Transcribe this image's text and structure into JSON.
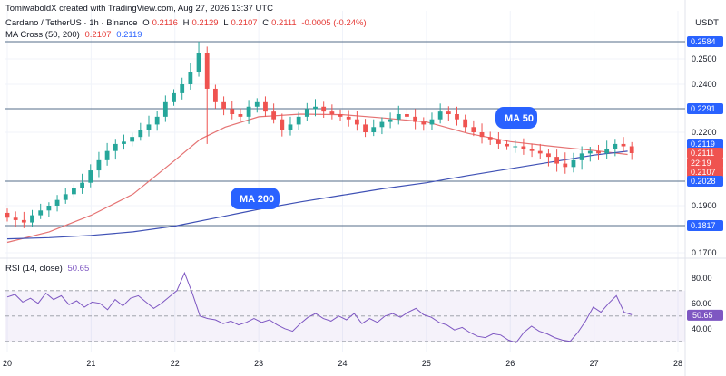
{
  "header": {
    "credit": "TomiwaboldX created with TradingView.com, Aug 27, 2026 13:37 UTC",
    "symbol": "Cardano / TetherUS · 1h · Binance",
    "ohlc": {
      "o_label": "O",
      "o": "0.2116",
      "h_label": "H",
      "h": "0.2129",
      "l_label": "L",
      "l": "0.2107",
      "c_label": "C",
      "c": "0.2111",
      "change": "-0.0005 (-0.24%)"
    },
    "ma_label": "MA Cross (50, 200)",
    "ma50_value": "0.2107",
    "ma200_value": "0.2119",
    "currency": "USDT"
  },
  "rsi_header": {
    "label": "RSI (14, close)",
    "value": "50.65"
  },
  "annotations": {
    "ma50": "MA 50",
    "ma200": "MA 200"
  },
  "colors": {
    "up": "#26a69a",
    "down": "#ef5350",
    "ma50": "#e57373",
    "ma200": "#3f51b5",
    "level": "#546e8a",
    "tag": "#2962ff",
    "rsi": "#7e57c2",
    "price_tag_red": "#ef5350"
  },
  "chart_data": [
    {
      "type": "candlestick",
      "title": "Cardano / TetherUS · 1h · Binance",
      "x_ticks": [
        "20",
        "21",
        "22",
        "23",
        "24",
        "25",
        "26",
        "27",
        "28"
      ],
      "y_ticks": [
        "0.2500",
        "0.2400",
        "0.2200",
        "0.1900",
        "0.1700"
      ],
      "ylim": [
        0.168,
        0.26
      ],
      "horizontal_levels": [
        "0.2584",
        "0.2291",
        "0.2028",
        "0.1817"
      ],
      "price_tags": [
        {
          "label": "0.2584",
          "kind": "level"
        },
        {
          "label": "0.2291",
          "kind": "level"
        },
        {
          "label": "0.2119",
          "kind": "ma"
        },
        {
          "label": "0.2111",
          "kind": "price"
        },
        {
          "label": "22:19",
          "kind": "countdown"
        },
        {
          "label": "0.2107",
          "kind": "ma50"
        },
        {
          "label": "0.2028",
          "kind": "level"
        },
        {
          "label": "0.1817",
          "kind": "level"
        }
      ],
      "series": [
        {
          "name": "MA 50",
          "x": [
            20.0,
            20.5,
            21.0,
            21.5,
            22.0,
            22.3,
            22.6,
            23.0,
            23.5,
            24.0,
            24.5,
            25.0,
            25.5,
            26.0,
            26.5,
            27.0,
            27.4
          ],
          "values": [
            0.1745,
            0.179,
            0.186,
            0.196,
            0.209,
            0.217,
            0.222,
            0.226,
            0.227,
            0.2268,
            0.2255,
            0.224,
            0.2195,
            0.216,
            0.214,
            0.2122,
            0.2107
          ]
        },
        {
          "name": "MA 200",
          "x": [
            20.0,
            20.5,
            21.0,
            21.5,
            22.0,
            22.5,
            23.0,
            23.5,
            24.0,
            24.5,
            25.0,
            25.5,
            26.0,
            26.5,
            27.0,
            27.4
          ],
          "values": [
            0.176,
            0.1765,
            0.1775,
            0.179,
            0.1815,
            0.185,
            0.1885,
            0.192,
            0.1955,
            0.199,
            0.202,
            0.2045,
            0.2065,
            0.2085,
            0.2105,
            0.2119
          ]
        }
      ],
      "candles_close": [
        0.185,
        0.184,
        0.183,
        0.186,
        0.188,
        0.19,
        0.193,
        0.196,
        0.199,
        0.202,
        0.206,
        0.209,
        0.212,
        0.215,
        0.216,
        0.218,
        0.221,
        0.223,
        0.226,
        0.232,
        0.236,
        0.24,
        0.245,
        0.253,
        0.238,
        0.232,
        0.229,
        0.227,
        0.226,
        0.23,
        0.232,
        0.228,
        0.225,
        0.221,
        0.223,
        0.226,
        0.229,
        0.23,
        0.228,
        0.227,
        0.226,
        0.225,
        0.223,
        0.22,
        0.222,
        0.224,
        0.225,
        0.227,
        0.226,
        0.224,
        0.223,
        0.225,
        0.228,
        0.227,
        0.225,
        0.222,
        0.22,
        0.218,
        0.217,
        0.215,
        0.214,
        0.214,
        0.213,
        0.212,
        0.211,
        0.21,
        0.208,
        0.207,
        0.209,
        0.211,
        0.212,
        0.211,
        0.213,
        0.215,
        0.214,
        0.2111
      ]
    },
    {
      "type": "line",
      "title": "RSI (14, close)",
      "y_ticks": [
        "80.00",
        "60.00",
        "40.00"
      ],
      "ylim": [
        22,
        92
      ],
      "bands": [
        70,
        50,
        30
      ],
      "current": "50.65",
      "values": [
        65,
        67,
        61,
        64,
        60,
        68,
        63,
        66,
        59,
        62,
        57,
        61,
        60,
        55,
        63,
        58,
        64,
        66,
        61,
        56,
        60,
        65,
        70,
        84,
        68,
        50,
        48,
        47,
        44,
        46,
        43,
        45,
        48,
        45,
        47,
        43,
        40,
        38,
        44,
        49,
        52,
        48,
        46,
        50,
        47,
        52,
        44,
        48,
        45,
        50,
        52,
        49,
        53,
        56,
        51,
        49,
        45,
        43,
        39,
        41,
        37,
        34,
        33,
        36,
        35,
        31,
        29,
        37,
        42,
        38,
        36,
        33,
        31,
        30,
        37,
        46,
        57,
        53,
        60,
        66,
        53,
        51
      ]
    }
  ]
}
